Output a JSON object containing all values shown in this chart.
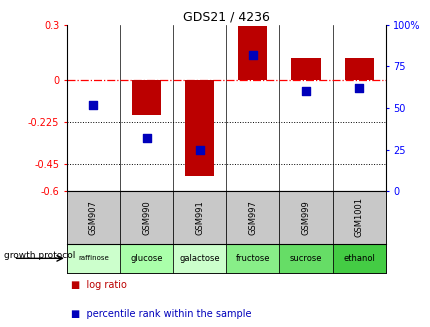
{
  "title": "GDS21 / 4236",
  "samples": [
    "GSM907",
    "GSM990",
    "GSM991",
    "GSM997",
    "GSM999",
    "GSM1001"
  ],
  "protocols": [
    "raffinose",
    "glucose",
    "galactose",
    "fructose",
    "sucrose",
    "ethanol"
  ],
  "log_ratios": [
    0.0,
    -0.19,
    -0.52,
    0.29,
    0.12,
    0.12
  ],
  "percentile_ranks": [
    52,
    32,
    25,
    82,
    60,
    62
  ],
  "left_ylim": [
    -0.6,
    0.3
  ],
  "left_yticks": [
    -0.6,
    -0.45,
    -0.225,
    0.0,
    0.3
  ],
  "left_ytick_labels": [
    "-0.6",
    "-0.45",
    "-0.225",
    "0",
    "0.3"
  ],
  "right_ylim": [
    0,
    100
  ],
  "right_yticks": [
    0,
    25,
    50,
    75,
    100
  ],
  "right_ytick_labels": [
    "0",
    "25",
    "50",
    "75",
    "100%"
  ],
  "dotted_lines": [
    -0.225,
    -0.45
  ],
  "bar_color": "#bb0000",
  "dot_color": "#0000bb",
  "bar_width": 0.55,
  "dot_size": 40,
  "protocol_colors": [
    "#ccffcc",
    "#aaffaa",
    "#ccffcc",
    "#88ee88",
    "#66dd66",
    "#44cc44"
  ],
  "gsm_bg": "#c8c8c8",
  "legend_log_color": "#bb0000",
  "legend_pct_color": "#0000bb"
}
